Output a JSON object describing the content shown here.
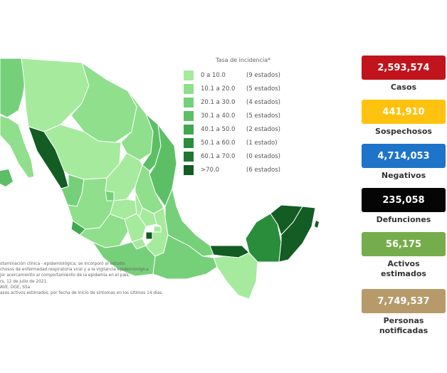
{
  "legend": {
    "title": "Tasa de incidencia*",
    "items": [
      {
        "range": "0   a  10.0",
        "count": "(9 estados)",
        "color": "#a6ea9e"
      },
      {
        "range": "10.1  a  20.0",
        "count": "(5 estados)",
        "color": "#8fdf8c"
      },
      {
        "range": "20.1  a  30.0",
        "count": "(4 estados)",
        "color": "#76d07a"
      },
      {
        "range": "30.1  a  40.0",
        "count": "(5 estados)",
        "color": "#5cbf66"
      },
      {
        "range": "40.1  a  50.0",
        "count": "(2 estados)",
        "color": "#3fa850"
      },
      {
        "range": "50.1  a  60.0",
        "count": "(1 estado)",
        "color": "#2a8d3c"
      },
      {
        "range": "60.1  a  70.0",
        "count": "(0 estados)",
        "color": "#1f7632"
      },
      {
        "range": ">70.0",
        "count": "(6 estados)",
        "color": "#135c24"
      }
    ]
  },
  "notes": [
    "otaminación clínica - epidemiológica; se incorporó al estudio",
    "chosos de enfermedad respiratoria viral y a la vigilancia epidemiológica",
    "jor acercamiento al comportamiento de la epidemia en el país.",
    "rs, 12 de julio de 2021.",
    "AVE, DGE, SSa",
    "asos activos estimados, por fecha de inicio de síntomas en los últimos 14 días."
  ],
  "stats": [
    {
      "value": "2,593,574",
      "label": "Casos",
      "bg": "#c1141c",
      "fg": "#ffffff"
    },
    {
      "value": "441,910",
      "label": "Sospechosos",
      "bg": "#ffc20e",
      "fg": "#ffffff"
    },
    {
      "value": "4,714,053",
      "label": "Negativos",
      "bg": "#1e74c9",
      "fg": "#ffffff"
    },
    {
      "value": "235,058",
      "label": "Defunciones",
      "bg": "#050505",
      "fg": "#ffffff"
    },
    {
      "value": "56,175",
      "label": "Activos estimados",
      "bg": "#76ad4c",
      "fg": "#ffffff"
    },
    {
      "value": "7,749,537",
      "label": "Personas notificadas",
      "bg": "#b79a6a",
      "fg": "#ffffff"
    }
  ]
}
